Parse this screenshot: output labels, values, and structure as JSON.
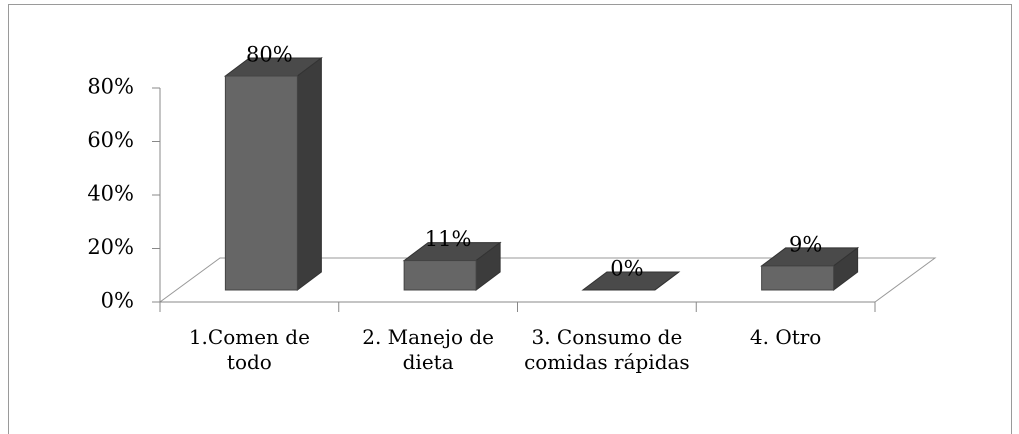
{
  "chart_data": {
    "type": "bar3d",
    "categories": [
      "1.Comen de todo",
      "2. Manejo de dieta",
      "3. Consumo de comidas rápidas",
      "4. Otro"
    ],
    "values": [
      80,
      11,
      0,
      9
    ],
    "value_labels": [
      "80%",
      "11%",
      "0%",
      "9%"
    ],
    "color": "#666666",
    "ylim": [
      0,
      80
    ],
    "yticks": [
      {
        "value": 0,
        "label": "0%"
      },
      {
        "value": 20,
        "label": "20%"
      },
      {
        "value": 40,
        "label": "40%"
      },
      {
        "value": 60,
        "label": "60%"
      },
      {
        "value": 80,
        "label": "80%"
      }
    ]
  }
}
